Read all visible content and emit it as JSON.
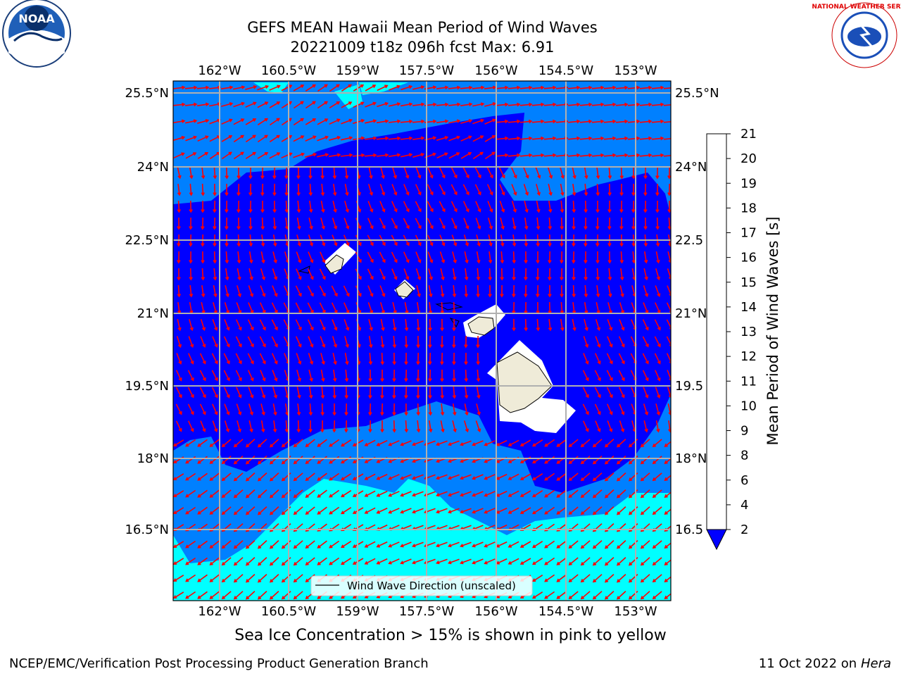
{
  "title": {
    "line1": "GEFS MEAN Hawaii Mean Period of Wind Waves",
    "line2": "20221009 t18z 096h fcst   Max: 6.91"
  },
  "logos": {
    "left_text": "NOAA",
    "right_text": "NATIONAL WEATHER SERVICE"
  },
  "map": {
    "lon_ticks": [
      "162°W",
      "160.5°W",
      "159°W",
      "157.5°W",
      "156°W",
      "154.5°W",
      "153°W"
    ],
    "lat_ticks": [
      "25.5°N",
      "24°N",
      "22.5°N",
      "21°N",
      "19.5°N",
      "18°N",
      "16.5°N"
    ],
    "lat_ticks_right": [
      "25.5°N",
      "24°N",
      "22.5",
      "21°N",
      "19.5",
      "18°N",
      "16.5"
    ],
    "legend": "Wind Wave Direction (unscaled)",
    "colors": {
      "deep": "#0000ff",
      "mid": "#0080ff",
      "light": "#00ffff",
      "arrow": "#ff0000",
      "land": "#efebd8"
    }
  },
  "colorbar": {
    "label": "Mean Period of Wind Waves [s]",
    "ticks": [
      "2",
      "4",
      "6",
      "8",
      "9",
      "10",
      "11",
      "12",
      "13",
      "14",
      "15",
      "16",
      "17",
      "18",
      "19",
      "20",
      "21"
    ],
    "colors": [
      "#0080ff",
      "#00e0ff",
      "#40ffff",
      "#80ffff",
      "#b0ffff",
      "#60ff80",
      "#00e000",
      "#40ff00",
      "#a0ff00",
      "#d0ff00",
      "#ffff00",
      "#ffe000",
      "#ffc000",
      "#ff9000",
      "#ff6000",
      "#ff3000",
      "#ff0000"
    ],
    "under_color": "#0000ff"
  },
  "note": "Sea Ice Concentration > 15% is shown in pink to yellow",
  "footer": {
    "left": "NCEP/EMC/Verification Post Processing Product Generation Branch",
    "right_prefix": "11 Oct 2022 on ",
    "right_host": "Hera"
  }
}
